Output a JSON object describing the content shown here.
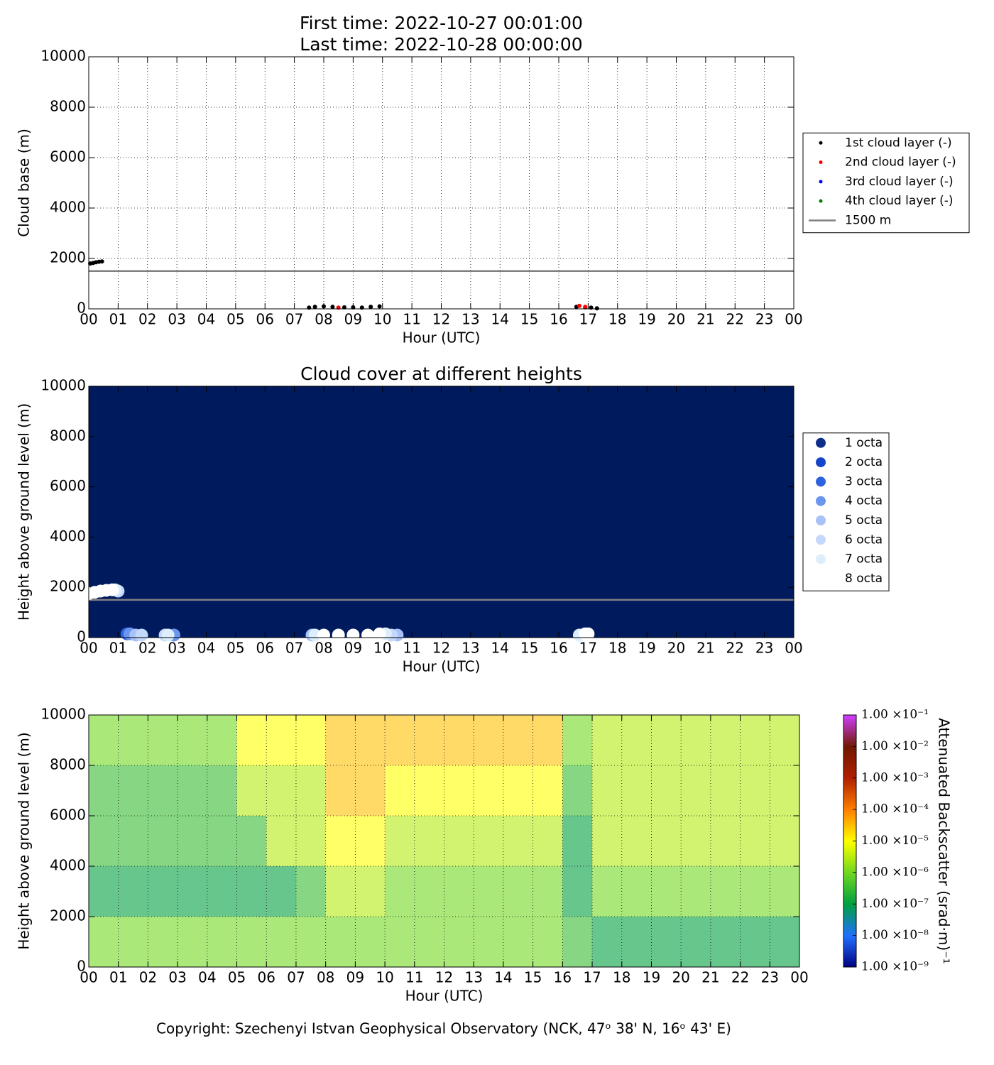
{
  "chart_data": [
    {
      "type": "scatter",
      "title": "First time: 2022-10-27 00:01:00",
      "subtitle": "Last time: 2022-10-28 00:00:00",
      "x_label": "Hour (UTC)",
      "y_label": "Cloud base (m)",
      "grid": true,
      "legend": "right",
      "xlim": [
        0,
        24
      ],
      "ylim": [
        0,
        10000
      ],
      "yticks": [
        0,
        2000,
        4000,
        6000,
        8000,
        10000
      ],
      "xticks": [
        {
          "value": 0,
          "label": "00"
        },
        {
          "value": 1,
          "label": "01"
        },
        {
          "value": 2,
          "label": "02"
        },
        {
          "value": 3,
          "label": "03"
        },
        {
          "value": 4,
          "label": "04"
        },
        {
          "value": 5,
          "label": "05"
        },
        {
          "value": 6,
          "label": "06"
        },
        {
          "value": 7,
          "label": "07"
        },
        {
          "value": 8,
          "label": "08"
        },
        {
          "value": 9,
          "label": "09"
        },
        {
          "value": 10,
          "label": "10"
        },
        {
          "value": 11,
          "label": "11"
        },
        {
          "value": 12,
          "label": "12"
        },
        {
          "value": 13,
          "label": "13"
        },
        {
          "value": 14,
          "label": "14"
        },
        {
          "value": 15,
          "label": "15"
        },
        {
          "value": 16,
          "label": "16"
        },
        {
          "value": 17,
          "label": "17"
        },
        {
          "value": 18,
          "label": "18"
        },
        {
          "value": 19,
          "label": "19"
        },
        {
          "value": 20,
          "label": "20"
        },
        {
          "value": 21,
          "label": "21"
        },
        {
          "value": 22,
          "label": "22"
        },
        {
          "value": 23,
          "label": "23"
        },
        {
          "value": 24,
          "label": "00"
        }
      ],
      "series": [
        {
          "name": "1st cloud layer (-)",
          "color": "#000000",
          "x": [
            0.05,
            0.15,
            0.25,
            0.35,
            0.45,
            7.5,
            7.7,
            8.0,
            8.3,
            8.7,
            9.0,
            9.3,
            9.6,
            9.9,
            16.6,
            16.9,
            17.1,
            17.3
          ],
          "values": [
            1800,
            1820,
            1850,
            1870,
            1880,
            50,
            80,
            100,
            80,
            60,
            60,
            50,
            80,
            100,
            80,
            60,
            50,
            20
          ]
        },
        {
          "name": "2nd cloud layer (-)",
          "color": "#ff0000",
          "x": [
            8.5,
            16.7,
            16.9
          ],
          "values": [
            50,
            120,
            80
          ]
        },
        {
          "name": "3rd cloud layer (-)",
          "color": "#0000ff",
          "x": [],
          "values": []
        },
        {
          "name": "4th cloud layer (-)",
          "color": "#008000",
          "x": [],
          "values": []
        }
      ],
      "hlines": [
        {
          "name": "1500 m",
          "value": 1500,
          "color": "#808080"
        }
      ]
    },
    {
      "type": "scatter",
      "title": "Cloud cover at different heights",
      "x_label": "Hour (UTC)",
      "y_label": "Height above ground level (m)",
      "grid": false,
      "legend": "right",
      "background": "#001a5e",
      "xlim": [
        0,
        24
      ],
      "ylim": [
        0,
        10000
      ],
      "yticks": [
        0,
        2000,
        4000,
        6000,
        8000,
        10000
      ],
      "xticks": [
        {
          "value": 0,
          "label": "00"
        },
        {
          "value": 1,
          "label": "01"
        },
        {
          "value": 2,
          "label": "02"
        },
        {
          "value": 3,
          "label": "03"
        },
        {
          "value": 4,
          "label": "04"
        },
        {
          "value": 5,
          "label": "05"
        },
        {
          "value": 6,
          "label": "06"
        },
        {
          "value": 7,
          "label": "07"
        },
        {
          "value": 8,
          "label": "08"
        },
        {
          "value": 9,
          "label": "09"
        },
        {
          "value": 10,
          "label": "10"
        },
        {
          "value": 11,
          "label": "11"
        },
        {
          "value": 12,
          "label": "12"
        },
        {
          "value": 13,
          "label": "13"
        },
        {
          "value": 14,
          "label": "14"
        },
        {
          "value": 15,
          "label": "15"
        },
        {
          "value": 16,
          "label": "16"
        },
        {
          "value": 17,
          "label": "17"
        },
        {
          "value": 18,
          "label": "18"
        },
        {
          "value": 19,
          "label": "19"
        },
        {
          "value": 20,
          "label": "20"
        },
        {
          "value": 21,
          "label": "21"
        },
        {
          "value": 22,
          "label": "22"
        },
        {
          "value": 23,
          "label": "23"
        },
        {
          "value": 24,
          "label": "00"
        }
      ],
      "series": [
        {
          "name": "1 octa",
          "color": "#0c2f8a",
          "x": [],
          "values": []
        },
        {
          "name": "2 octa",
          "color": "#1346c8",
          "x": [],
          "values": []
        },
        {
          "name": "3 octa",
          "color": "#2e62dc",
          "x": [
            1.3
          ],
          "values": [
            150
          ]
        },
        {
          "name": "4 octa",
          "color": "#6b96f0",
          "x": [
            1.4,
            2.9
          ],
          "values": [
            150,
            100
          ]
        },
        {
          "name": "5 octa",
          "color": "#a8c2f8",
          "x": [
            1.6,
            7.6,
            10.5
          ],
          "values": [
            100,
            100,
            100
          ]
        },
        {
          "name": "6 octa",
          "color": "#c3d8fa",
          "x": [
            1.0,
            1.8,
            2.6,
            10.3
          ],
          "values": [
            1850,
            100,
            100,
            100
          ]
        },
        {
          "name": "7 octa",
          "color": "#dceefc",
          "x": [
            0.9,
            2.7,
            7.7,
            10.1,
            16.7
          ],
          "values": [
            1900,
            100,
            100,
            150,
            100
          ]
        },
        {
          "name": "8 octa",
          "color": "#ffffff",
          "x": [
            0,
            0.2,
            0.4,
            0.6,
            0.8,
            8.0,
            8.5,
            9.0,
            9.5,
            9.9,
            16.9,
            17.0
          ],
          "values": [
            1750,
            1800,
            1850,
            1880,
            1900,
            100,
            100,
            100,
            100,
            150,
            150,
            150
          ]
        }
      ],
      "hlines": [
        {
          "value": 1500,
          "color": "#808080"
        }
      ]
    },
    {
      "type": "heatmap",
      "x_label": "Hour (UTC)",
      "y_label": "Height above ground level (m)",
      "grid": true,
      "xlim": [
        0,
        24
      ],
      "ylim": [
        0,
        10000
      ],
      "yticks": [
        0,
        2000,
        4000,
        6000,
        8000,
        10000
      ],
      "xticks": [
        {
          "value": 0,
          "label": "00"
        },
        {
          "value": 1,
          "label": "01"
        },
        {
          "value": 2,
          "label": "02"
        },
        {
          "value": 3,
          "label": "03"
        },
        {
          "value": 4,
          "label": "04"
        },
        {
          "value": 5,
          "label": "05"
        },
        {
          "value": 6,
          "label": "06"
        },
        {
          "value": 7,
          "label": "07"
        },
        {
          "value": 8,
          "label": "08"
        },
        {
          "value": 9,
          "label": "09"
        },
        {
          "value": 10,
          "label": "10"
        },
        {
          "value": 11,
          "label": "11"
        },
        {
          "value": 12,
          "label": "12"
        },
        {
          "value": 13,
          "label": "13"
        },
        {
          "value": 14,
          "label": "14"
        },
        {
          "value": 15,
          "label": "15"
        },
        {
          "value": 16,
          "label": "16"
        },
        {
          "value": 17,
          "label": "17"
        },
        {
          "value": 18,
          "label": "18"
        },
        {
          "value": 19,
          "label": "19"
        },
        {
          "value": 20,
          "label": "20"
        },
        {
          "value": 21,
          "label": "21"
        },
        {
          "value": 22,
          "label": "22"
        },
        {
          "value": 23,
          "label": "23"
        },
        {
          "value": 24,
          "label": "00"
        }
      ],
      "x": [
        0,
        1,
        2,
        3,
        4,
        5,
        6,
        7,
        8,
        9,
        10,
        11,
        12,
        13,
        14,
        15,
        16,
        17,
        18,
        19,
        20,
        21,
        22,
        23,
        24
      ],
      "y": [
        0,
        2000,
        4000,
        6000,
        8000,
        10000
      ],
      "z": [
        [
          1e-06,
          1e-06,
          1e-06,
          1e-06,
          1e-06,
          1e-06,
          1e-06,
          1e-06,
          1e-06,
          1e-06,
          1e-06,
          1e-06,
          1e-06,
          1e-06,
          1e-06,
          1e-06,
          3e-07,
          1e-07,
          1e-07,
          1e-07,
          1e-07,
          1e-07,
          1e-07,
          1e-07
        ],
        [
          1e-07,
          1e-07,
          1e-07,
          1e-07,
          1e-07,
          1e-07,
          1e-07,
          3e-07,
          3e-06,
          3e-06,
          1e-06,
          1e-06,
          1e-06,
          1e-06,
          1e-06,
          1e-06,
          1e-07,
          1e-06,
          1e-06,
          1e-06,
          1e-06,
          1e-06,
          1e-06,
          1e-06
        ],
        [
          3e-07,
          3e-07,
          3e-07,
          3e-07,
          3e-07,
          3e-07,
          3e-06,
          3e-06,
          1e-05,
          1e-05,
          3e-06,
          3e-06,
          3e-06,
          3e-06,
          3e-06,
          3e-06,
          1e-07,
          3e-06,
          3e-06,
          3e-06,
          3e-06,
          3e-06,
          3e-06,
          3e-06
        ],
        [
          3e-07,
          3e-07,
          3e-07,
          3e-07,
          3e-07,
          3e-06,
          3e-06,
          3e-06,
          3e-05,
          3e-05,
          1e-05,
          1e-05,
          1e-05,
          1e-05,
          1e-05,
          1e-05,
          3e-07,
          3e-06,
          3e-06,
          3e-06,
          3e-06,
          3e-06,
          3e-06,
          3e-06
        ],
        [
          1e-06,
          1e-06,
          1e-06,
          1e-06,
          1e-06,
          1e-05,
          1e-05,
          1e-05,
          3e-05,
          3e-05,
          3e-05,
          3e-05,
          3e-05,
          3e-05,
          3e-05,
          3e-05,
          1e-06,
          3e-06,
          3e-06,
          3e-06,
          3e-06,
          3e-06,
          3e-06,
          3e-06
        ]
      ],
      "log_scale": true,
      "clim": [
        1e-09,
        0.1
      ],
      "colormap": [
        "#00007f",
        "#2070ff",
        "#00a040",
        "#70d820",
        "#ffff00",
        "#ff7f00",
        "#b02000",
        "#701800",
        "#d040ff"
      ],
      "colorbar_label": "Attenuated Backscatter (srad·m)⁻¹",
      "cticks": [
        {
          "value": 1e-09,
          "label": "1.00 ×10⁻⁹"
        },
        {
          "value": 1e-08,
          "label": "1.00 ×10⁻⁸"
        },
        {
          "value": 1e-07,
          "label": "1.00 ×10⁻⁷"
        },
        {
          "value": 1e-06,
          "label": "1.00 ×10⁻⁶"
        },
        {
          "value": 1e-05,
          "label": "1.00 ×10⁻⁵"
        },
        {
          "value": 0.0001,
          "label": "1.00 ×10⁻⁴"
        },
        {
          "value": 0.001,
          "label": "1.00 ×10⁻³"
        },
        {
          "value": 0.01,
          "label": "1.00 ×10⁻²"
        },
        {
          "value": 0.1,
          "label": "1.00 ×10⁻¹"
        }
      ]
    }
  ],
  "footer": "Copyright: Szechenyi Istvan Geophysical Observatory (NCK, 47ᵒ 38' N, 16ᵒ 43' E)"
}
